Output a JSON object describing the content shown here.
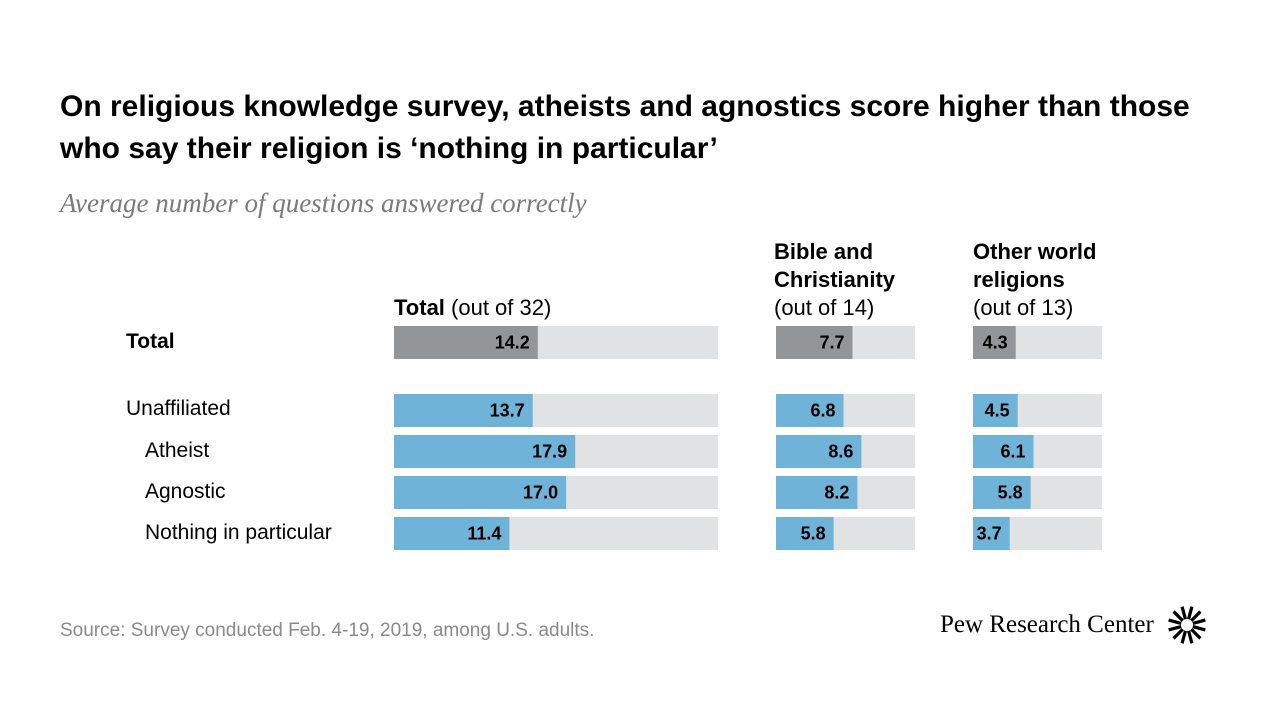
{
  "title": "On religious knowledge survey, atheists and agnostics score higher than those who say their religion is ‘nothing in particular’",
  "subtitle": "Average number of questions answered correctly",
  "source": "Source: Survey conducted Feb. 4-19, 2019, among U.S. adults.",
  "branding": {
    "name": "Pew Research Center",
    "logo_icon": "pew-sunburst-icon"
  },
  "columns": [
    {
      "bold": "Total",
      "rest": " (out of 32)"
    },
    {
      "bold": "Bible and Christianity",
      "rest": "(out of 14)"
    },
    {
      "bold": "Other world religions",
      "rest": "(out of 13)"
    }
  ],
  "rows": [
    "Total",
    "Unaffiliated",
    "Atheist",
    "Agnostic",
    "Nothing in particular"
  ],
  "colors": {
    "total_bar": "#939598",
    "group_bar": "#6fb3d8",
    "track": "#e1e2e3",
    "label": "#000000"
  },
  "chart_data": {
    "type": "bar",
    "orientation": "horizontal",
    "title": "On religious knowledge survey, atheists and agnostics score higher than those who say their religion is ‘nothing in particular’",
    "subtitle": "Average number of questions answered correctly",
    "categories": [
      "Total",
      "Unaffiliated",
      "Atheist",
      "Agnostic",
      "Nothing in particular"
    ],
    "series": [
      {
        "name": "Total (out of 32)",
        "max": 32,
        "values": [
          14.2,
          13.7,
          17.9,
          17.0,
          11.4
        ],
        "labels": [
          "14.2",
          "13.7",
          "17.9",
          "17.0",
          "11.4"
        ]
      },
      {
        "name": "Bible and Christianity (out of 14)",
        "max": 14,
        "values": [
          7.7,
          6.8,
          8.6,
          8.2,
          5.8
        ],
        "labels": [
          "7.7",
          "6.8",
          "8.6",
          "8.2",
          "5.8"
        ]
      },
      {
        "name": "Other world religions (out of 13)",
        "max": 13,
        "values": [
          4.3,
          4.5,
          6.1,
          5.8,
          3.7
        ],
        "labels": [
          "4.3",
          "4.5",
          "6.1",
          "5.8",
          "3.7"
        ]
      }
    ]
  }
}
